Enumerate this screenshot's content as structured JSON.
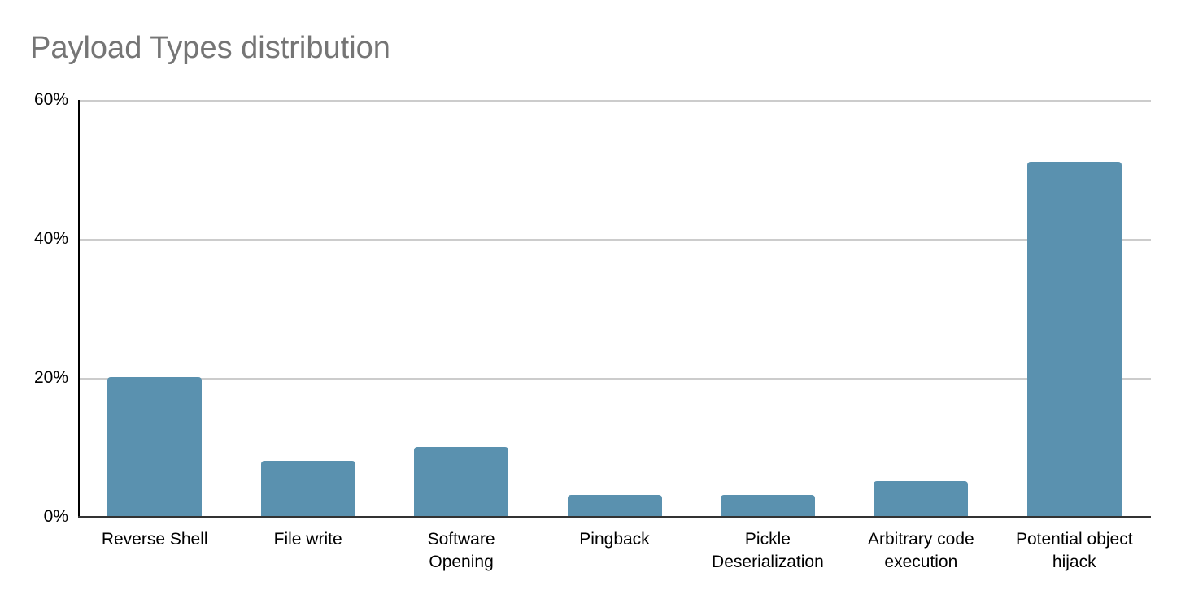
{
  "chart_data": {
    "type": "bar",
    "title": "Payload Types distribution",
    "xlabel": "",
    "ylabel": "",
    "ylim": [
      0,
      60
    ],
    "yticks": [
      "0%",
      "20%",
      "40%",
      "60%"
    ],
    "grid": true,
    "legend": null,
    "bar_color": "#5a91af",
    "categories": [
      "Reverse Shell",
      "File write",
      "Software Opening",
      "Pingback",
      "Pickle Deserialization",
      "Arbitrary code execution",
      "Potential object hijack"
    ],
    "category_lines": [
      [
        "Reverse Shell"
      ],
      [
        "File write"
      ],
      [
        "Software",
        "Opening"
      ],
      [
        "Pingback"
      ],
      [
        "Pickle",
        "Deserialization"
      ],
      [
        "Arbitrary code",
        "execution"
      ],
      [
        "Potential object",
        "hijack"
      ]
    ],
    "values": [
      20,
      8,
      10,
      3,
      3,
      5,
      51
    ],
    "unit": "%"
  }
}
